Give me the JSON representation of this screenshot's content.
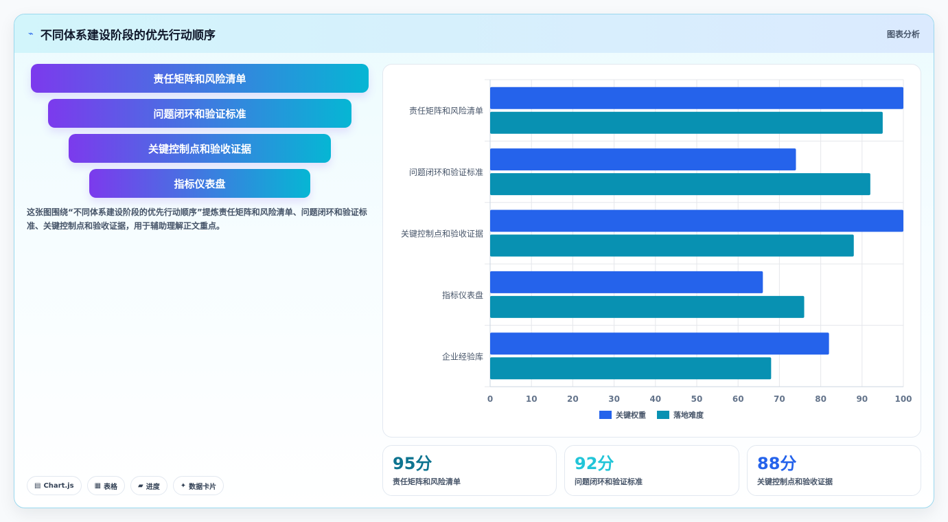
{
  "header": {
    "title": "不同体系建设阶段的优先行动顺序",
    "tag": "图表分析",
    "icon": "chart-line-icon"
  },
  "funnel": {
    "steps": [
      "责任矩阵和风险清单",
      "问题闭环和验证标准",
      "关键控制点和验收证据",
      "指标仪表盘"
    ]
  },
  "description": "这张图围绕“不同体系建设阶段的优先行动顺序”提炼责任矩阵和风险清单、问题闭环和验证标准、关键控制点和验收证据，用于辅助理解正文重点。",
  "chips": [
    {
      "icon": "chart-icon",
      "glyph": "▤",
      "label": "Chart.js"
    },
    {
      "icon": "table-icon",
      "glyph": "▦",
      "label": "表格"
    },
    {
      "icon": "progress-icon",
      "glyph": "▰",
      "label": "进度"
    },
    {
      "icon": "sparkle-icon",
      "glyph": "✦",
      "label": "数据卡片"
    }
  ],
  "chart_data": {
    "type": "bar",
    "orientation": "horizontal",
    "categories": [
      "责任矩阵和风险清单",
      "问题闭环和验证标准",
      "关键控制点和验收证据",
      "指标仪表盘",
      "企业经验库"
    ],
    "series": [
      {
        "name": "关键权重",
        "color": "#2563eb",
        "values": [
          100,
          74,
          100,
          66,
          82
        ]
      },
      {
        "name": "落地难度",
        "color": "#0891b2",
        "values": [
          95,
          92,
          88,
          76,
          68
        ]
      }
    ],
    "xlim": [
      0,
      100
    ],
    "xticks": [
      0,
      10,
      20,
      30,
      40,
      50,
      60,
      70,
      80,
      90,
      100
    ],
    "grid": true,
    "legend": "bottom"
  },
  "kpis": [
    {
      "value": "95分",
      "label": "责任矩阵和风险清单",
      "color": "#0e7490"
    },
    {
      "value": "92分",
      "label": "问题闭环和验证标准",
      "color": "#22c5d8"
    },
    {
      "value": "88分",
      "label": "关键控制点和验收证据",
      "color": "#2563eb"
    }
  ]
}
